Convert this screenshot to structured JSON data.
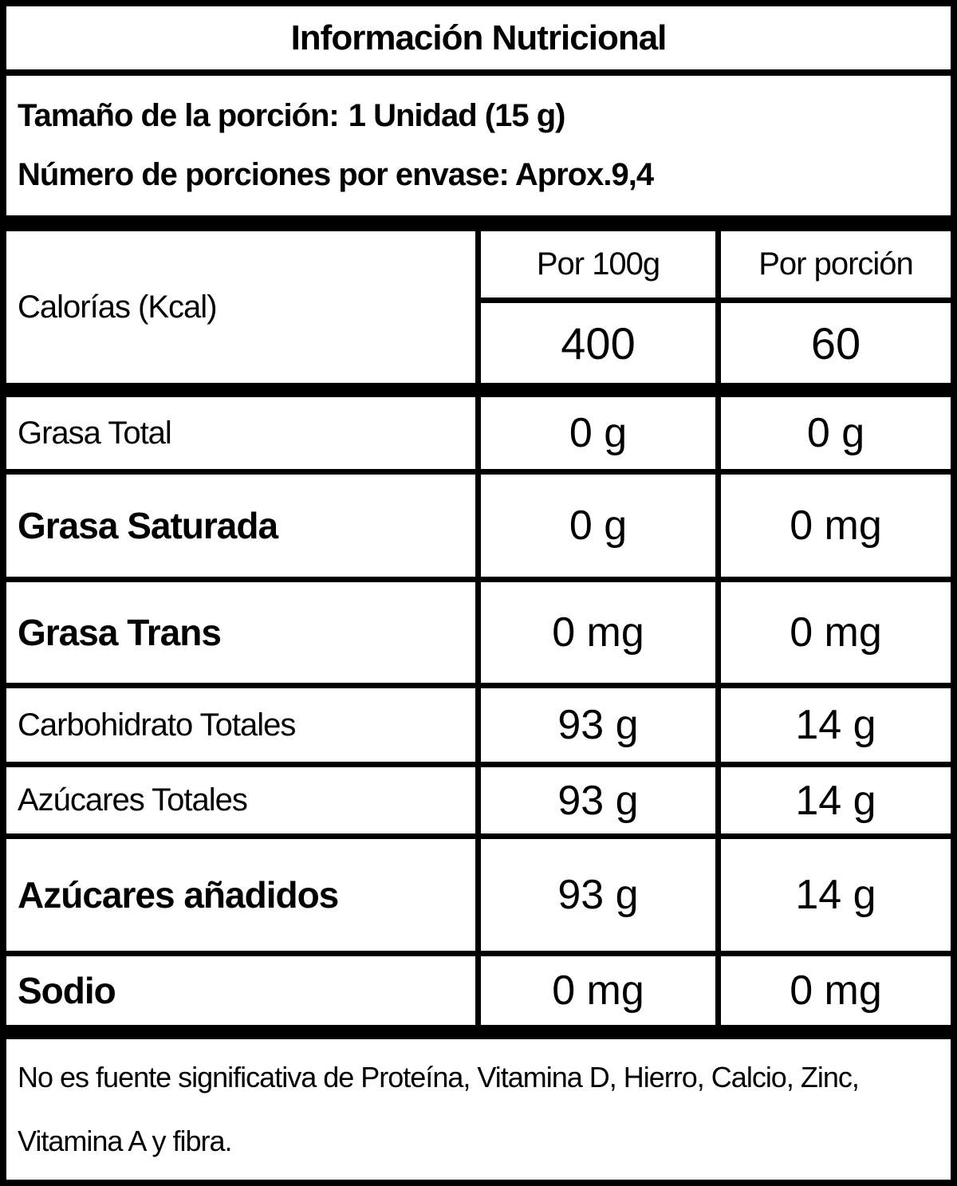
{
  "header": {
    "title": "Información Nutricional",
    "serving_size_label": "Tamaño de la porción:",
    "serving_size_value": "1 Unidad (15 g)",
    "servings_per_container_label": "Número de porciones por envase:",
    "servings_per_container_value": "Aprox.9,4"
  },
  "table": {
    "col_headers": {
      "per_100g": "Por 100g",
      "per_portion": "Por porción"
    },
    "calories": {
      "label": "Calorías (Kcal)",
      "per_100g": "400",
      "per_portion": "60"
    },
    "rows": [
      {
        "label": "Grasa Total",
        "bold": false,
        "per_100g": "0 g",
        "per_portion": "0 g"
      },
      {
        "label": "Grasa Saturada",
        "bold": true,
        "per_100g": "0 g",
        "per_portion": "0 mg"
      },
      {
        "label": "Grasa Trans",
        "bold": true,
        "per_100g": "0 mg",
        "per_portion": "0 mg"
      },
      {
        "label": "Carbohidrato Totales",
        "bold": false,
        "per_100g": "93 g",
        "per_portion": "14 g"
      },
      {
        "label": "Azúcares Totales",
        "bold": false,
        "per_100g": "93 g",
        "per_portion": "14 g"
      },
      {
        "label": "Azúcares añadidos",
        "bold": true,
        "per_100g": "93 g",
        "per_portion": "14 g"
      },
      {
        "label": "Sodio",
        "bold": true,
        "per_100g": "0 mg",
        "per_portion": "0 mg"
      }
    ]
  },
  "footer": {
    "note": "No es fuente significativa de Proteína, Vitamina D, Hierro, Calcio, Zinc, Vitamina A y fibra."
  },
  "colors": {
    "border": "#000000",
    "background": "#ffffff",
    "text": "#000000"
  }
}
